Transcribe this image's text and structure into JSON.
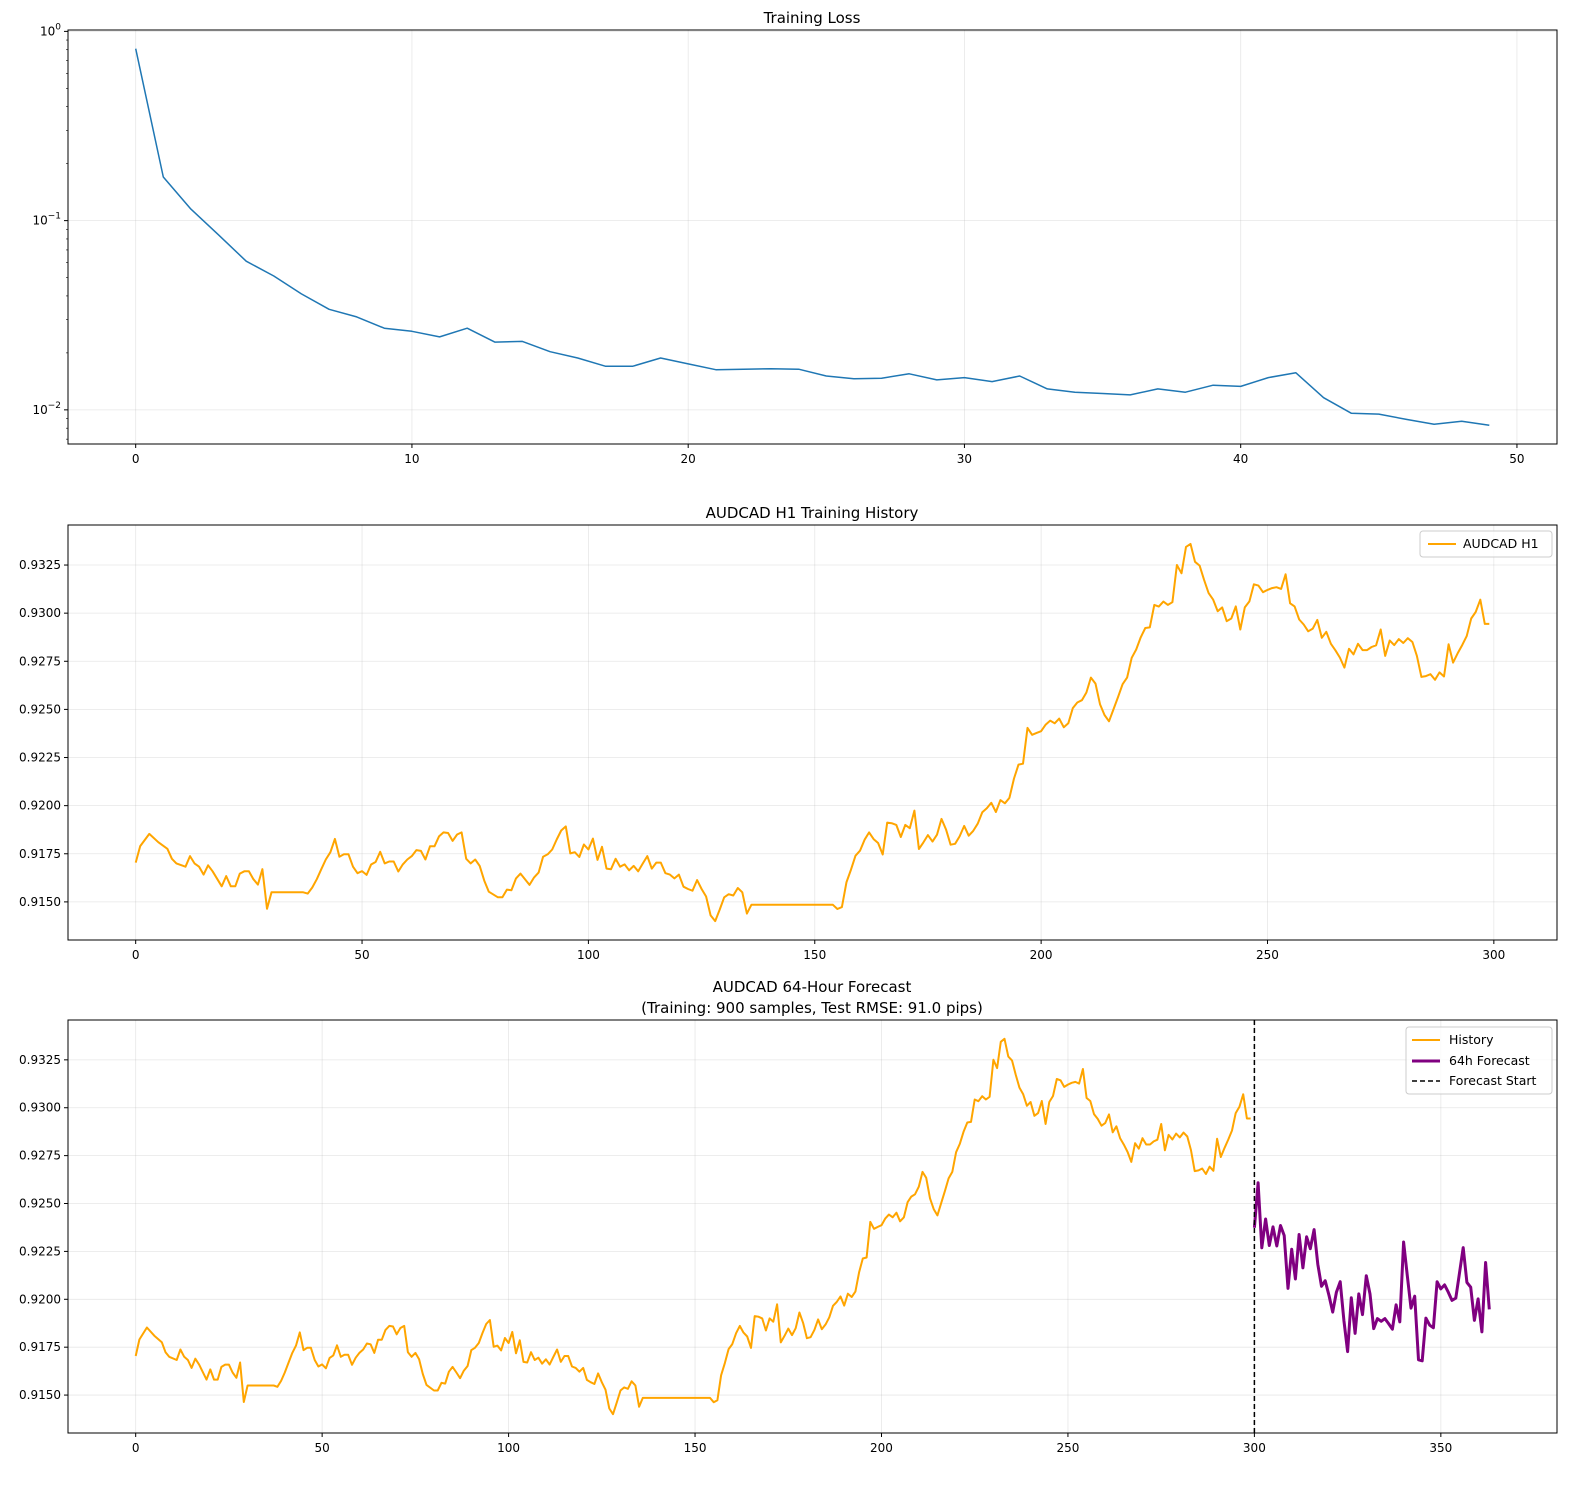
{
  "chart_data": [
    {
      "type": "line",
      "title": "Training Loss",
      "xlabel": "",
      "ylabel": "",
      "yscale": "log",
      "xlim": [
        -2.45,
        51.45
      ],
      "ylim": [
        0.0066,
        1.017
      ],
      "grid": true,
      "xticks": [
        0,
        10,
        20,
        30,
        40,
        50
      ],
      "xtick_labels": [
        "0",
        "10",
        "20",
        "30",
        "40",
        "50"
      ],
      "yticks": [
        1,
        0.1,
        0.01
      ],
      "ytick_labels": [
        {
          "base": "10",
          "exp": "0"
        },
        {
          "base": "10",
          "exp": "−1"
        },
        {
          "base": "10",
          "exp": "−2"
        }
      ],
      "series": [
        {
          "name": "loss",
          "color": "#1f77b4",
          "x": [
            0,
            1,
            2,
            3,
            4,
            5,
            6,
            7,
            8,
            9,
            10,
            11,
            12,
            13,
            14,
            15,
            16,
            17,
            18,
            19,
            20,
            21,
            22,
            23,
            24,
            25,
            26,
            27,
            28,
            29,
            30,
            31,
            32,
            33,
            34,
            35,
            36,
            37,
            38,
            39,
            40,
            41,
            42,
            43,
            44,
            45,
            46,
            47,
            48,
            49
          ],
          "y": [
            0.81,
            0.17,
            0.115,
            0.084,
            0.061,
            0.051,
            0.041,
            0.034,
            0.031,
            0.027,
            0.026,
            0.0243,
            0.027,
            0.0228,
            0.023,
            0.0203,
            0.0188,
            0.017,
            0.017,
            0.0188,
            0.0175,
            0.0163,
            0.0164,
            0.0165,
            0.0164,
            0.0151,
            0.0146,
            0.0147,
            0.0155,
            0.0144,
            0.0148,
            0.0141,
            0.0151,
            0.0129,
            0.0124,
            0.0122,
            0.012,
            0.0129,
            0.0124,
            0.0135,
            0.0133,
            0.0148,
            0.0157,
            0.0116,
            0.0096,
            0.0095,
            0.0089,
            0.0084,
            0.0087,
            0.0083
          ]
        }
      ]
    },
    {
      "type": "line",
      "title": "AUDCAD H1 Training History",
      "xlabel": "",
      "ylabel": "",
      "xlim": [
        -14.95,
        313.95
      ],
      "ylim": [
        0.91302,
        0.93458
      ],
      "grid": true,
      "legend": "top-right",
      "xticks": [
        0,
        50,
        100,
        150,
        200,
        250,
        300
      ],
      "xtick_labels": [
        "0",
        "50",
        "100",
        "150",
        "200",
        "250",
        "300"
      ],
      "yticks": [
        0.915,
        0.9175,
        0.92,
        0.9225,
        0.925,
        0.9275,
        0.93,
        0.9325
      ],
      "ytick_labels": [
        "0.9150",
        "0.9175",
        "0.9200",
        "0.9225",
        "0.9250",
        "0.9275",
        "0.9300",
        "0.9325"
      ],
      "series": [
        {
          "name": "AUDCAD H1",
          "color": "#FFA500",
          "ref": "history"
        }
      ]
    },
    {
      "type": "line",
      "title": "AUDCAD 64-Hour Forecast",
      "subtitle": "(Training: 900 samples, Test RMSE: 91.0 pips)",
      "xlabel": "",
      "ylabel": "",
      "xlim": [
        -18.15,
        381.15
      ],
      "ylim": [
        0.91302,
        0.93458
      ],
      "grid": true,
      "legend": "top-right",
      "xticks": [
        0,
        50,
        100,
        150,
        200,
        250,
        300,
        350
      ],
      "xtick_labels": [
        "0",
        "50",
        "100",
        "150",
        "200",
        "250",
        "300",
        "350"
      ],
      "yticks": [
        0.915,
        0.9175,
        0.92,
        0.9225,
        0.925,
        0.9275,
        0.93,
        0.9325
      ],
      "ytick_labels": [
        "0.9150",
        "0.9175",
        "0.9200",
        "0.9225",
        "0.9250",
        "0.9275",
        "0.9300",
        "0.9325"
      ],
      "vline": {
        "name": "Forecast Start",
        "x": 300,
        "color": "#000000"
      },
      "series": [
        {
          "name": "History",
          "color": "#FFA500",
          "ref": "history"
        },
        {
          "name": "64h Forecast",
          "color": "#800080",
          "x_start": 300,
          "values": [
            0.92373,
            0.92608,
            0.92269,
            0.92419,
            0.92281,
            0.92378,
            0.92278,
            0.92385,
            0.92333,
            0.92057,
            0.92261,
            0.92106,
            0.92338,
            0.92164,
            0.92326,
            0.92264,
            0.92364,
            0.92183,
            0.92068,
            0.92097,
            0.9202,
            0.91933,
            0.92037,
            0.92092,
            0.9189,
            0.91727,
            0.92008,
            0.91822,
            0.92028,
            0.9192,
            0.92123,
            0.92028,
            0.91847,
            0.91899,
            0.91885,
            0.91899,
            0.91873,
            0.91844,
            0.91971,
            0.91882,
            0.92299,
            0.92123,
            0.91954,
            0.92016,
            0.91684,
            0.91679,
            0.91902,
            0.91865,
            0.91851,
            0.92092,
            0.92054,
            0.92075,
            0.92037,
            0.91994,
            0.92006,
            0.92137,
            0.9227,
            0.92088,
            0.92063,
            0.9189,
            0.92002,
            0.9183,
            0.92192,
            0.91947
          ]
        }
      ]
    }
  ],
  "history": [
    [
      0,
      0.91704
    ],
    [
      1,
      0.9179
    ],
    [
      3,
      0.91853
    ],
    [
      5,
      0.9181
    ],
    [
      7,
      0.91776
    ],
    [
      8,
      0.91724
    ],
    [
      9,
      0.917
    ],
    [
      11,
      0.91683
    ],
    [
      12,
      0.91738
    ],
    [
      13,
      0.917
    ],
    [
      14,
      0.91683
    ],
    [
      15,
      0.91642
    ],
    [
      16,
      0.9169
    ],
    [
      17,
      0.91659
    ],
    [
      19,
      0.91581
    ],
    [
      20,
      0.91634
    ],
    [
      21,
      0.91581
    ],
    [
      22,
      0.91581
    ],
    [
      23,
      0.91647
    ],
    [
      24,
      0.91659
    ],
    [
      25,
      0.91659
    ],
    [
      26,
      0.91618
    ],
    [
      27,
      0.9159
    ],
    [
      28,
      0.9167
    ],
    [
      29,
      0.91464
    ],
    [
      30,
      0.9155
    ],
    [
      37,
      0.9155
    ],
    [
      38,
      0.91543
    ],
    [
      39,
      0.91574
    ],
    [
      40,
      0.91618
    ],
    [
      41,
      0.9167
    ],
    [
      42,
      0.9172
    ],
    [
      43,
      0.91758
    ],
    [
      44,
      0.91827
    ],
    [
      45,
      0.91735
    ],
    [
      46,
      0.91747
    ],
    [
      47,
      0.91747
    ],
    [
      48,
      0.91683
    ],
    [
      49,
      0.91649
    ],
    [
      50,
      0.9166
    ],
    [
      51,
      0.9164
    ],
    [
      52,
      0.91694
    ],
    [
      53,
      0.91707
    ],
    [
      54,
      0.9176
    ],
    [
      55,
      0.917
    ],
    [
      56,
      0.9171
    ],
    [
      57,
      0.9171
    ],
    [
      58,
      0.91658
    ],
    [
      59,
      0.91695
    ],
    [
      60,
      0.9172
    ],
    [
      61,
      0.91738
    ],
    [
      62,
      0.91769
    ],
    [
      63,
      0.91765
    ],
    [
      64,
      0.9172
    ],
    [
      65,
      0.91789
    ],
    [
      66,
      0.91789
    ],
    [
      67,
      0.9184
    ],
    [
      68,
      0.91861
    ],
    [
      69,
      0.91858
    ],
    [
      70,
      0.91817
    ],
    [
      71,
      0.9185
    ],
    [
      72,
      0.91861
    ],
    [
      73,
      0.91724
    ],
    [
      74,
      0.917
    ],
    [
      75,
      0.9172
    ],
    [
      76,
      0.91687
    ],
    [
      77,
      0.9161
    ],
    [
      78,
      0.91553
    ],
    [
      80,
      0.91524
    ],
    [
      81,
      0.91524
    ],
    [
      82,
      0.91564
    ],
    [
      83,
      0.9156
    ],
    [
      84,
      0.91622
    ],
    [
      85,
      0.91647
    ],
    [
      86,
      0.91618
    ],
    [
      87,
      0.91588
    ],
    [
      88,
      0.91627
    ],
    [
      89,
      0.91652
    ],
    [
      90,
      0.91735
    ],
    [
      91,
      0.91747
    ],
    [
      92,
      0.91772
    ],
    [
      93,
      0.91824
    ],
    [
      94,
      0.91871
    ],
    [
      95,
      0.91892
    ],
    [
      96,
      0.91752
    ],
    [
      97,
      0.91758
    ],
    [
      98,
      0.91733
    ],
    [
      99,
      0.91798
    ],
    [
      100,
      0.91772
    ],
    [
      101,
      0.91829
    ],
    [
      102,
      0.91718
    ],
    [
      103,
      0.91786
    ],
    [
      104,
      0.91673
    ],
    [
      105,
      0.9167
    ],
    [
      106,
      0.91724
    ],
    [
      107,
      0.91683
    ],
    [
      108,
      0.91695
    ],
    [
      109,
      0.91664
    ],
    [
      110,
      0.91687
    ],
    [
      111,
      0.91659
    ],
    [
      112,
      0.91699
    ],
    [
      113,
      0.91738
    ],
    [
      114,
      0.91673
    ],
    [
      115,
      0.91704
    ],
    [
      116,
      0.91704
    ],
    [
      117,
      0.91649
    ],
    [
      118,
      0.91642
    ],
    [
      119,
      0.91622
    ],
    [
      120,
      0.91642
    ],
    [
      121,
      0.91579
    ],
    [
      122,
      0.91567
    ],
    [
      123,
      0.91558
    ],
    [
      124,
      0.91613
    ],
    [
      125,
      0.91567
    ],
    [
      126,
      0.91528
    ],
    [
      127,
      0.9143
    ],
    [
      128,
      0.914
    ],
    [
      129,
      0.9146
    ],
    [
      130,
      0.91524
    ],
    [
      131,
      0.9154
    ],
    [
      132,
      0.91533
    ],
    [
      133,
      0.91572
    ],
    [
      134,
      0.9155
    ],
    [
      135,
      0.91439
    ],
    [
      136,
      0.91485
    ],
    [
      154,
      0.91485
    ],
    [
      155,
      0.91463
    ],
    [
      156,
      0.91473
    ],
    [
      157,
      0.91603
    ],
    [
      158,
      0.91668
    ],
    [
      159,
      0.9174
    ],
    [
      160,
      0.91766
    ],
    [
      161,
      0.91823
    ],
    [
      162,
      0.91861
    ],
    [
      163,
      0.91826
    ],
    [
      164,
      0.91806
    ],
    [
      165,
      0.91746
    ],
    [
      166,
      0.91912
    ],
    [
      167,
      0.91909
    ],
    [
      168,
      0.919
    ],
    [
      169,
      0.91837
    ],
    [
      170,
      0.919
    ],
    [
      171,
      0.91883
    ],
    [
      172,
      0.91974
    ],
    [
      173,
      0.91775
    ],
    [
      174,
      0.91809
    ],
    [
      175,
      0.91847
    ],
    [
      176,
      0.91813
    ],
    [
      177,
      0.91849
    ],
    [
      178,
      0.91931
    ],
    [
      179,
      0.91875
    ],
    [
      180,
      0.91797
    ],
    [
      181,
      0.91802
    ],
    [
      182,
      0.9184
    ],
    [
      183,
      0.91895
    ],
    [
      184,
      0.91844
    ],
    [
      185,
      0.91869
    ],
    [
      186,
      0.91906
    ],
    [
      187,
      0.91966
    ],
    [
      188,
      0.91986
    ],
    [
      189,
      0.92015
    ],
    [
      190,
      0.91967
    ],
    [
      191,
      0.92029
    ],
    [
      192,
      0.92012
    ],
    [
      193,
      0.9204
    ],
    [
      194,
      0.92141
    ],
    [
      195,
      0.92213
    ],
    [
      196,
      0.92218
    ],
    [
      197,
      0.92404
    ],
    [
      198,
      0.92368
    ],
    [
      199,
      0.92378
    ],
    [
      200,
      0.92387
    ],
    [
      201,
      0.92421
    ],
    [
      202,
      0.92442
    ],
    [
      203,
      0.92428
    ],
    [
      204,
      0.92452
    ],
    [
      205,
      0.92407
    ],
    [
      206,
      0.92428
    ],
    [
      207,
      0.92507
    ],
    [
      208,
      0.92536
    ],
    [
      209,
      0.92548
    ],
    [
      210,
      0.92588
    ],
    [
      211,
      0.92665
    ],
    [
      212,
      0.92634
    ],
    [
      213,
      0.92527
    ],
    [
      214,
      0.92471
    ],
    [
      215,
      0.92438
    ],
    [
      216,
      0.92502
    ],
    [
      217,
      0.92565
    ],
    [
      218,
      0.92631
    ],
    [
      219,
      0.92665
    ],
    [
      220,
      0.92768
    ],
    [
      221,
      0.92811
    ],
    [
      222,
      0.92874
    ],
    [
      223,
      0.92923
    ],
    [
      224,
      0.92926
    ],
    [
      225,
      0.93043
    ],
    [
      226,
      0.93034
    ],
    [
      227,
      0.9306
    ],
    [
      228,
      0.93043
    ],
    [
      229,
      0.93057
    ],
    [
      230,
      0.9325
    ],
    [
      231,
      0.93207
    ],
    [
      232,
      0.93344
    ],
    [
      233,
      0.9336
    ],
    [
      234,
      0.93267
    ],
    [
      235,
      0.93247
    ],
    [
      236,
      0.93173
    ],
    [
      237,
      0.93104
    ],
    [
      238,
      0.9307
    ],
    [
      239,
      0.9301
    ],
    [
      240,
      0.9303
    ],
    [
      241,
      0.92958
    ],
    [
      242,
      0.92972
    ],
    [
      243,
      0.93035
    ],
    [
      244,
      0.92915
    ],
    [
      245,
      0.9303
    ],
    [
      246,
      0.93061
    ],
    [
      247,
      0.9315
    ],
    [
      248,
      0.93143
    ],
    [
      249,
      0.93109
    ],
    [
      250,
      0.93121
    ],
    [
      251,
      0.9313
    ],
    [
      252,
      0.93135
    ],
    [
      253,
      0.93126
    ],
    [
      254,
      0.93202
    ],
    [
      255,
      0.93051
    ],
    [
      256,
      0.93035
    ],
    [
      257,
      0.92967
    ],
    [
      258,
      0.92941
    ],
    [
      259,
      0.92906
    ],
    [
      260,
      0.9292
    ],
    [
      261,
      0.92965
    ],
    [
      262,
      0.92872
    ],
    [
      263,
      0.92903
    ],
    [
      264,
      0.92841
    ],
    [
      265,
      0.92807
    ],
    [
      266,
      0.92769
    ],
    [
      267,
      0.92717
    ],
    [
      268,
      0.92815
    ],
    [
      269,
      0.92786
    ],
    [
      270,
      0.92841
    ],
    [
      271,
      0.92808
    ],
    [
      272,
      0.92808
    ],
    [
      273,
      0.92824
    ],
    [
      274,
      0.92833
    ],
    [
      275,
      0.92915
    ],
    [
      276,
      0.92778
    ],
    [
      277,
      0.92858
    ],
    [
      278,
      0.92834
    ],
    [
      279,
      0.92865
    ],
    [
      280,
      0.92845
    ],
    [
      281,
      0.9287
    ],
    [
      282,
      0.9285
    ],
    [
      283,
      0.92778
    ],
    [
      284,
      0.92669
    ],
    [
      285,
      0.92673
    ],
    [
      286,
      0.92683
    ],
    [
      287,
      0.92654
    ],
    [
      288,
      0.92692
    ],
    [
      289,
      0.92671
    ],
    [
      290,
      0.92838
    ],
    [
      291,
      0.92743
    ],
    [
      292,
      0.92791
    ],
    [
      293,
      0.92834
    ],
    [
      294,
      0.92881
    ],
    [
      295,
      0.92972
    ],
    [
      296,
      0.93006
    ],
    [
      297,
      0.9307
    ],
    [
      298,
      0.92944
    ],
    [
      299,
      0.92944
    ]
  ]
}
